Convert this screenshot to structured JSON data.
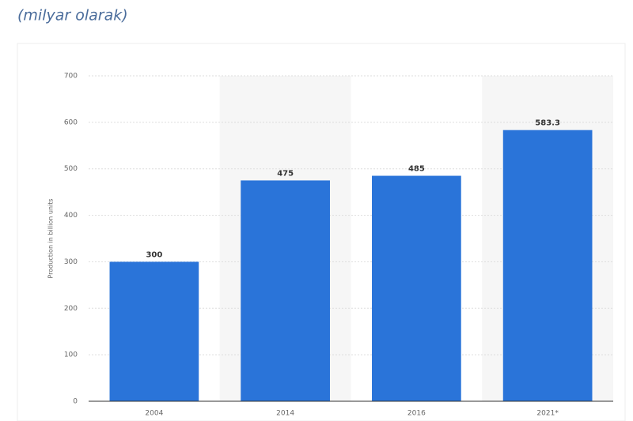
{
  "chart_data": {
    "type": "bar",
    "title": "(milyar olarak)",
    "y_label": "Production in billion units",
    "categories": [
      "2004",
      "2014",
      "2016",
      "2021*"
    ],
    "values": [
      300,
      475,
      485,
      583.3
    ],
    "color": "#2a74d9",
    "ylim": [
      0,
      700
    ],
    "yticks": [
      0,
      100,
      200,
      300,
      400,
      500,
      600,
      700
    ],
    "grid": true
  }
}
